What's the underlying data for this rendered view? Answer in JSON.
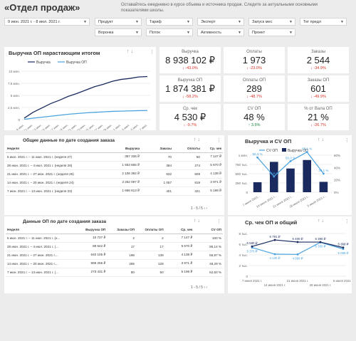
{
  "header": {
    "title": "«Отдел продаж»",
    "subtitle": "Оставайтесь ежедневно в курсе объема и источника продаж. Следите за актуальными основными показателями школы."
  },
  "filters": {
    "date_range": "9 июн. 2021 г. - 8 июл. 2021 г.",
    "row1": [
      "Продукт",
      "Тариф",
      "Эксперт",
      "Запуск мес",
      "Тег предл"
    ],
    "row2": [
      "Воронка",
      "Поток",
      "Активность",
      "Проект"
    ]
  },
  "revenue_chart": {
    "title": "Выручка ОП нарастающим итогом",
    "legend": [
      "Выручка",
      "Выручка ОП"
    ],
    "yticks": [
      "10 млн.",
      "7,5 млн.",
      "5 млн.",
      "2,5 млн.",
      "0"
    ],
    "xticks": [
      "9 июн.",
      "11 июн.",
      "13 июн.",
      "15 июн.",
      "17 июн.",
      "19 июн.",
      "21 июн.",
      "23 июн.",
      "25 июн.",
      "27 июн.",
      "29 июн.",
      "1 июл.",
      "3 июл.",
      "5 июл.",
      "7 июл."
    ]
  },
  "chart_data": [
    {
      "type": "line",
      "title": "Выручка ОП нарастающим итогом",
      "x": [
        "9 июн.",
        "11 июн.",
        "13 июн.",
        "15 июн.",
        "17 июн.",
        "19 июн.",
        "21 июн.",
        "23 июн.",
        "25 июн.",
        "27 июн.",
        "29 июн.",
        "1 июл.",
        "3 июл.",
        "5 июл.",
        "7 июл."
      ],
      "series": [
        {
          "name": "Выручка",
          "values": [
            0.3,
            1.5,
            2.4,
            3.3,
            4.0,
            4.8,
            5.4,
            6.1,
            6.8,
            7.3,
            7.9,
            8.3,
            8.5,
            8.8,
            8.9
          ]
        },
        {
          "name": "Выручка ОП",
          "values": [
            0.05,
            0.3,
            0.5,
            0.7,
            0.9,
            1.1,
            1.25,
            1.4,
            1.5,
            1.6,
            1.7,
            1.75,
            1.8,
            1.85,
            1.87
          ]
        }
      ],
      "ylim": [
        0,
        10
      ],
      "yunit": "млн.",
      "colors": [
        "#1a2a5e",
        "#4aa3df"
      ]
    },
    {
      "type": "bar",
      "title": "Выручка и CV ОП",
      "categories": [
        "7 июня 2021...",
        "14 июня 2021 г...",
        "21 июня 2021 г...",
        "28 июня 2021 г...",
        "5 июля 2021 г..."
      ],
      "series": [
        {
          "name": "Выручка ОП",
          "values": [
            270000,
            820000,
            640000,
            870000,
            280000
          ]
        },
        {
          "name": "CV ОП",
          "values": [
            56.3,
            25.6,
            50.3,
            65.1,
            30.1
          ]
        }
      ],
      "bar_labels": [
        "",
        "",
        "",
        "",
        ""
      ],
      "line_labels": [
        "56,3 %",
        "25,6 %",
        "50,3 %",
        "65,1 %",
        "30,1 %"
      ],
      "yleft_ticks": [
        "1 млн.",
        "750 тыс.",
        "500 тыс.",
        "250 тыс.",
        "0"
      ],
      "yright_ticks": [
        "60%",
        "40%",
        "20%",
        "0%"
      ],
      "colors": [
        "#1a2a5e",
        "#4aa3df"
      ]
    },
    {
      "type": "line",
      "title": "Ср. чек ОП и общий",
      "categories": [
        "7 июня 2021 г.",
        "14 июня 2021 г.",
        "21 июня 2021 г.",
        "28 июня 2021 г.",
        "5 июля 2021 г."
      ],
      "series": [
        {
          "name": "Ср. чек ОП",
          "values": [
            5370,
            4130,
            4090,
            6350,
            5099
          ],
          "labels": [
            "5 370 ₽",
            "4 130 ₽",
            "4 090 ₽",
            "6 350 ₽",
            "5 099 ₽"
          ]
        },
        {
          "name": "Ср. чек",
          "values": [
            5580,
            6791,
            6400,
            6390,
            5368
          ],
          "labels": [
            "5 580 ₽",
            "6 791 ₽",
            "6 400 ₽",
            "6 390 ₽",
            "5 368 ₽"
          ]
        }
      ],
      "ylim": [
        0,
        8000
      ],
      "yticks": [
        "8 тыс.",
        "6 тыс.",
        "4 тыс.",
        "2 тыс.",
        "0"
      ],
      "colors": [
        "#4aa3df",
        "#1a2a5e"
      ]
    }
  ],
  "kpis": [
    {
      "title": "Выручка",
      "value": "8 938 102 ₽",
      "delta": "↓ -43.0%",
      "neg": true
    },
    {
      "title": "Оплаты",
      "value": "1 973",
      "delta": "↓ -23.0%",
      "neg": true
    },
    {
      "title": "Заказы",
      "value": "2 544",
      "delta": "↓ -34.9%",
      "neg": true
    },
    {
      "title": "Выручка ОП",
      "value": "1 874 381 ₽",
      "delta": "↓ -58.2%",
      "neg": true
    },
    {
      "title": "Оплаты ОП",
      "value": "289",
      "delta": "↓ -48.7%",
      "neg": true
    },
    {
      "title": "Заказы ОП",
      "value": "601",
      "delta": "↓ -49.9%",
      "neg": true
    },
    {
      "title": "Ср. чек",
      "value": "4 530 ₽",
      "delta": "↓ -9.7%",
      "neg": true
    },
    {
      "title": "CV ОП",
      "value": "48 %",
      "delta": "↑ 3.5%",
      "neg": false
    },
    {
      "title": "% от Вала ОП",
      "value": "21 %",
      "delta": "↓ -26.7%",
      "neg": true
    }
  ],
  "table1": {
    "title": "Общие данные по дате создания заказа",
    "headers": [
      "Неделя",
      "Выручка",
      "Заказы",
      "Оплаты",
      "Ср. чек"
    ],
    "rows": [
      [
        "5 июл. 2021 г. – 11 июл. 2021 г. (неделя 27)",
        "357 336 ₽",
        "70",
        "50",
        "7 147 ₽"
      ],
      [
        "28 июн. 2021 г. – 4 июл. 2021 г. (неделя 26)",
        "1 553 665 ₽",
        "384",
        "274",
        "5 670 ₽"
      ],
      [
        "21 июн. 2021 г. – 27 июн. 2021 г. (неделя 25)",
        "2 106 392 ₽",
        "632",
        "509",
        "4 138 ₽"
      ],
      [
        "14 июн. 2021 г. – 20 июн. 2021 г. (неделя 24)",
        "3 252 097 ₽",
        "1 057",
        "819",
        "3 971 ₽"
      ],
      [
        "7 июн. 2021 г. – 13 июн. 2021 г. (неделя 23)",
        "1 668 613 ₽",
        "401",
        "321",
        "5 198 ₽"
      ]
    ],
    "pager": "1 - 5 / 5"
  },
  "table2": {
    "title": "Данные ОП по дате создания заказа",
    "headers": [
      "Неделя",
      "Выручка ОП",
      "Заказы ОП",
      "Оплаты ОП",
      "Ср. чек",
      "CV ОП"
    ],
    "rows": [
      [
        "5 июл. 2021 г. – 11 июл. 2021 г. (н...",
        "10 737 ₽",
        "2",
        "2",
        "7 147 ₽",
        "100 %"
      ],
      [
        "28 июн. 2021 г. – 4 июл. 2021 г. (...",
        "88 642 ₽",
        "17",
        "17",
        "5 670 ₽",
        "95,14 %"
      ],
      [
        "21 июн. 2021 г. – 27 июн. 2021 г....",
        "640 105 ₽",
        "196",
        "139",
        "4 138 ₽",
        "56,97 %"
      ],
      [
        "14 июн. 2021 г. – 20 июн. 2021 г....",
        "869 266 ₽",
        "265",
        "128",
        "3 971 ₽",
        "48,29 %"
      ],
      [
        "7 июн. 2021 г. – 13 июн. 2021 г. (...",
        "273 431 ₽",
        "80",
        "50",
        "5 198 ₽",
        "62,50 %"
      ]
    ],
    "pager": "1 - 5 / 5"
  }
}
